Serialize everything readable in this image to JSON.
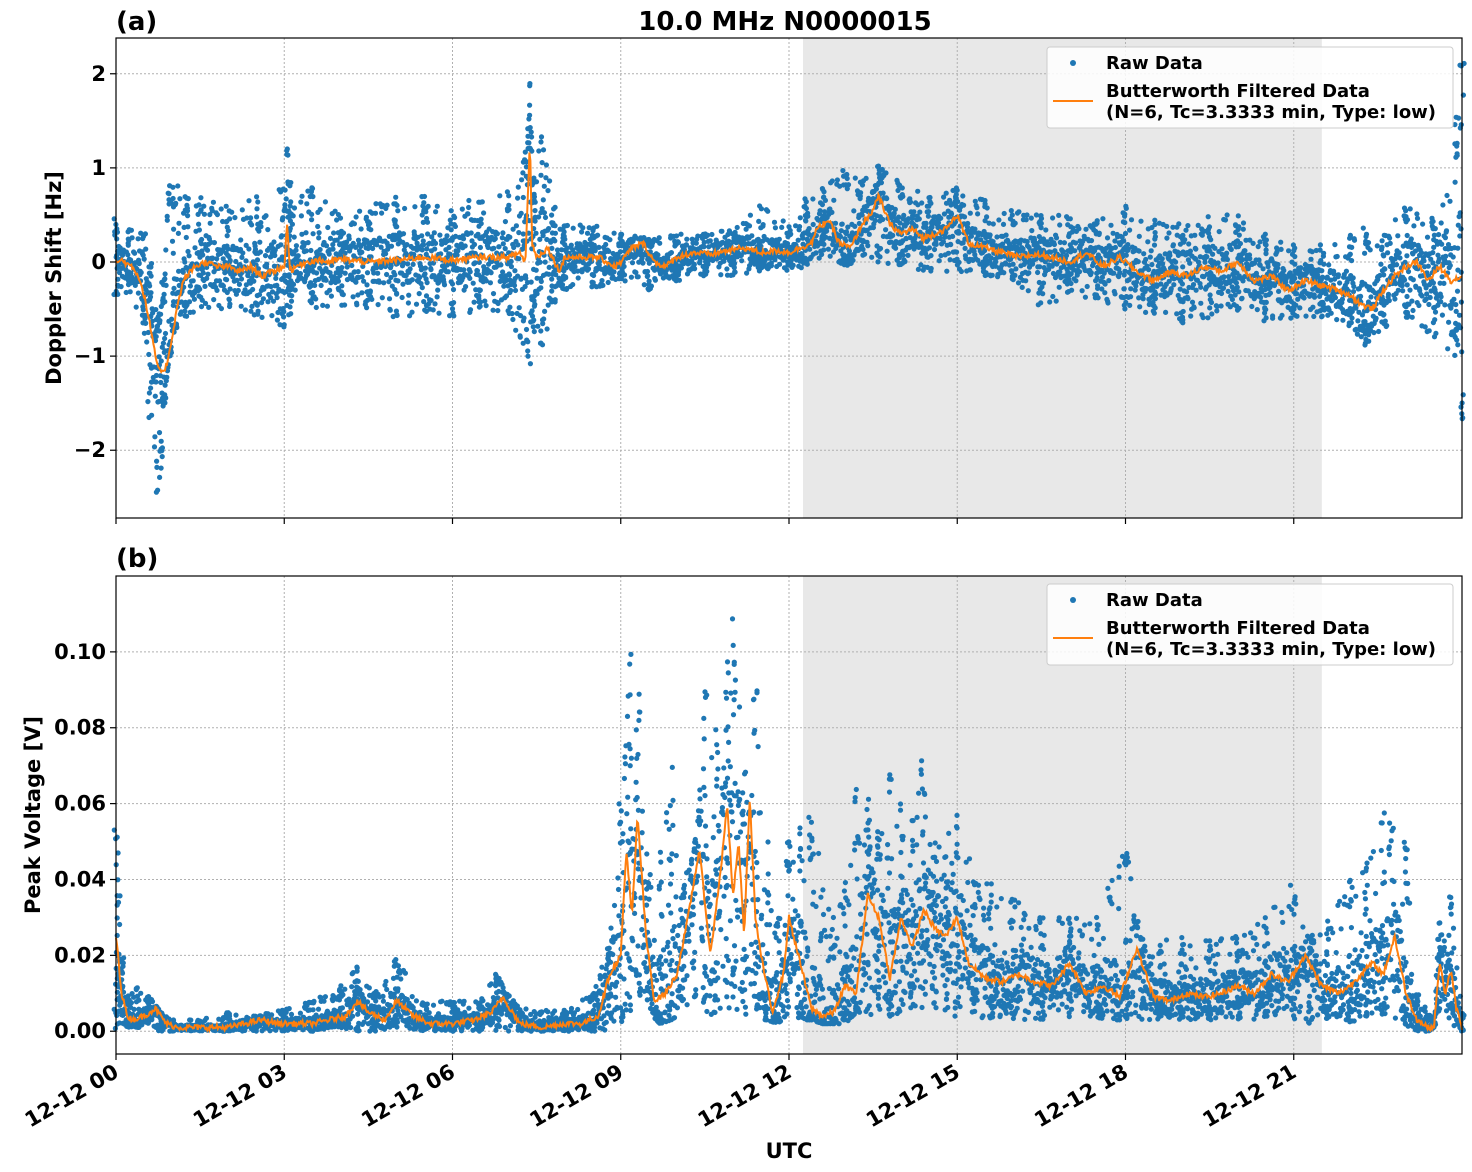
{
  "chart_data": [
    {
      "type": "scatter",
      "panel_label": "(a)",
      "title": "10.0 MHz N0000015",
      "xlabel": "",
      "ylabel": "Doppler Shift [Hz]",
      "xlim_hours": [
        0,
        24
      ],
      "ylim": [
        -2.72,
        2.38
      ],
      "x_ticks": [
        0,
        3,
        6,
        9,
        12,
        15,
        18,
        21
      ],
      "y_ticks": [
        -2,
        -1,
        0,
        1,
        2
      ],
      "y_tick_labels": [
        "−2",
        "−1",
        "0",
        "1",
        "2"
      ],
      "grid": true,
      "legend_position": "top-right",
      "shaded_region_hours": [
        12.25,
        21.5
      ],
      "series": [
        {
          "name": "Raw Data",
          "kind": "scatter",
          "color": "#1f77b4",
          "x_hours": [
            0.0,
            0.25,
            0.5,
            0.6,
            0.75,
            0.8,
            0.85,
            0.95,
            1.05,
            1.25,
            1.5,
            2.0,
            2.5,
            3.0,
            3.08,
            3.1,
            3.12,
            3.5,
            4.0,
            4.5,
            5.0,
            5.5,
            6.0,
            6.5,
            7.0,
            7.3,
            7.38,
            7.42,
            7.45,
            7.6,
            7.8,
            8.0,
            8.5,
            9.0,
            9.5,
            10.0,
            10.5,
            11.0,
            11.5,
            12.0,
            12.3,
            12.6,
            13.0,
            13.3,
            13.6,
            14.0,
            14.5,
            15.0,
            15.5,
            16.0,
            16.5,
            17.0,
            17.5,
            18.0,
            18.5,
            19.0,
            19.5,
            20.0,
            20.5,
            21.0,
            21.5,
            22.0,
            22.3,
            22.6,
            23.0,
            23.5,
            23.9,
            24.0
          ],
          "y_low": [
            -0.35,
            -0.35,
            -0.7,
            -1.7,
            -2.5,
            -2.2,
            -1.5,
            -1.0,
            -0.7,
            -0.6,
            -0.5,
            -0.5,
            -0.6,
            -0.7,
            -0.3,
            -0.6,
            -0.3,
            -0.5,
            -0.5,
            -0.5,
            -0.6,
            -0.55,
            -0.6,
            -0.5,
            -0.6,
            -0.9,
            -1.2,
            -0.8,
            -0.7,
            -0.9,
            -0.5,
            -0.3,
            -0.3,
            -0.2,
            -0.3,
            -0.2,
            -0.15,
            -0.15,
            -0.1,
            -0.1,
            -0.05,
            0.05,
            -0.05,
            0.05,
            -0.05,
            -0.05,
            -0.1,
            -0.1,
            -0.15,
            -0.2,
            -0.5,
            -0.35,
            -0.4,
            -0.5,
            -0.55,
            -0.65,
            -0.6,
            -0.55,
            -0.65,
            -0.6,
            -0.6,
            -0.7,
            -0.9,
            -0.7,
            -0.6,
            -0.8,
            -1.0,
            -1.7
          ],
          "y_high": [
            0.5,
            0.35,
            0.3,
            0.1,
            -0.5,
            -0.3,
            0.1,
            1.0,
            0.8,
            0.85,
            0.7,
            0.6,
            0.7,
            0.8,
            1.3,
            0.9,
            0.6,
            0.8,
            0.5,
            0.6,
            0.7,
            0.7,
            0.6,
            0.7,
            0.8,
            1.3,
            1.9,
            1.2,
            0.9,
            1.37,
            0.6,
            0.4,
            0.4,
            0.3,
            0.25,
            0.3,
            0.3,
            0.35,
            0.6,
            0.4,
            0.7,
            0.8,
            1.0,
            0.9,
            1.02,
            0.85,
            0.7,
            0.8,
            0.7,
            0.55,
            0.5,
            0.5,
            0.45,
            0.6,
            0.45,
            0.45,
            0.5,
            0.5,
            0.3,
            0.2,
            0.2,
            0.3,
            0.4,
            0.3,
            0.6,
            0.5,
            1.8,
            2.15
          ]
        },
        {
          "name": "Butterworth Filtered Data",
          "name_line2": "(N=6, Tc=3.3333 min, Type: low)",
          "kind": "line",
          "color": "#ff7f0e",
          "x_hours": [
            0.0,
            0.1,
            0.2,
            0.3,
            0.4,
            0.5,
            0.6,
            0.7,
            0.8,
            0.9,
            1.0,
            1.1,
            1.2,
            1.4,
            1.6,
            1.8,
            2.0,
            2.2,
            2.4,
            2.6,
            2.8,
            3.0,
            3.05,
            3.1,
            3.15,
            3.2,
            3.4,
            3.6,
            3.8,
            4.0,
            4.5,
            5.0,
            5.5,
            6.0,
            6.5,
            7.0,
            7.2,
            7.3,
            7.38,
            7.42,
            7.5,
            7.7,
            7.9,
            8.0,
            8.3,
            8.6,
            8.9,
            9.0,
            9.2,
            9.4,
            9.6,
            9.8,
            10.0,
            10.3,
            10.6,
            10.9,
            11.2,
            11.5,
            11.8,
            12.0,
            12.2,
            12.4,
            12.5,
            12.7,
            12.9,
            13.1,
            13.3,
            13.5,
            13.6,
            13.8,
            14.0,
            14.2,
            14.4,
            14.6,
            14.8,
            15.0,
            15.2,
            15.5,
            15.8,
            16.1,
            16.4,
            16.7,
            17.0,
            17.3,
            17.6,
            17.9,
            18.2,
            18.5,
            18.8,
            19.1,
            19.4,
            19.7,
            20.0,
            20.3,
            20.6,
            20.9,
            21.2,
            21.5,
            21.8,
            22.0,
            22.2,
            22.4,
            22.6,
            22.8,
            23.0,
            23.2,
            23.4,
            23.6,
            23.8,
            24.0
          ],
          "y": [
            0.0,
            0.02,
            -0.02,
            -0.05,
            -0.15,
            -0.35,
            -0.65,
            -1.0,
            -1.2,
            -1.1,
            -0.8,
            -0.45,
            -0.2,
            -0.05,
            0.0,
            -0.05,
            -0.05,
            -0.1,
            -0.05,
            -0.15,
            -0.1,
            -0.05,
            0.4,
            -0.05,
            -0.1,
            -0.05,
            0.0,
            0.02,
            0.0,
            0.03,
            0.0,
            0.02,
            0.05,
            0.02,
            0.05,
            0.05,
            0.1,
            0.0,
            1.3,
            0.2,
            0.05,
            0.15,
            -0.1,
            0.05,
            0.05,
            0.05,
            -0.05,
            0.0,
            0.15,
            0.2,
            0.0,
            -0.05,
            0.05,
            0.1,
            0.08,
            0.12,
            0.15,
            0.1,
            0.12,
            0.1,
            0.15,
            0.2,
            0.35,
            0.45,
            0.2,
            0.15,
            0.4,
            0.55,
            0.7,
            0.4,
            0.3,
            0.35,
            0.25,
            0.3,
            0.35,
            0.5,
            0.2,
            0.15,
            0.1,
            0.05,
            0.08,
            0.05,
            0.0,
            0.1,
            -0.05,
            0.05,
            -0.1,
            -0.2,
            -0.1,
            -0.15,
            -0.05,
            -0.1,
            0.0,
            -0.2,
            -0.15,
            -0.3,
            -0.2,
            -0.25,
            -0.3,
            -0.35,
            -0.45,
            -0.5,
            -0.3,
            -0.15,
            -0.05,
            0.0,
            -0.2,
            -0.05,
            -0.2,
            -0.15
          ]
        }
      ]
    },
    {
      "type": "scatter",
      "panel_label": "(b)",
      "title": "",
      "xlabel": "UTC",
      "ylabel": "Peak Voltage [V]",
      "xlim_hours": [
        0,
        24
      ],
      "ylim": [
        -0.006,
        0.12
      ],
      "x_ticks": [
        0,
        3,
        6,
        9,
        12,
        15,
        18,
        21
      ],
      "x_tick_labels": [
        "12-12 00",
        "12-12 03",
        "12-12 06",
        "12-12 09",
        "12-12 12",
        "12-12 15",
        "12-12 18",
        "12-12 21"
      ],
      "y_ticks": [
        0.0,
        0.02,
        0.04,
        0.06,
        0.08,
        0.1
      ],
      "y_tick_labels": [
        "0.00",
        "0.02",
        "0.04",
        "0.06",
        "0.08",
        "0.10"
      ],
      "grid": true,
      "legend_position": "top-right",
      "shaded_region_hours": [
        12.25,
        21.5
      ],
      "series": [
        {
          "name": "Raw Data",
          "kind": "scatter",
          "color": "#1f77b4",
          "x_hours": [
            0.0,
            0.05,
            0.1,
            0.2,
            0.4,
            0.6,
            0.8,
            1.0,
            1.5,
            2.0,
            2.5,
            3.0,
            3.5,
            4.0,
            4.3,
            4.6,
            5.0,
            5.5,
            6.0,
            6.5,
            6.8,
            7.2,
            7.6,
            8.0,
            8.5,
            8.8,
            9.0,
            9.15,
            9.3,
            9.5,
            9.7,
            9.9,
            10.1,
            10.3,
            10.5,
            10.7,
            10.9,
            11.0,
            11.2,
            11.4,
            11.6,
            11.8,
            12.0,
            12.2,
            12.4,
            12.6,
            12.8,
            13.0,
            13.2,
            13.4,
            13.6,
            13.8,
            14.0,
            14.2,
            14.4,
            14.6,
            14.8,
            15.0,
            15.3,
            15.6,
            16.0,
            16.5,
            17.0,
            17.5,
            18.0,
            18.3,
            18.6,
            19.0,
            19.5,
            20.0,
            20.5,
            21.0,
            21.3,
            21.6,
            22.0,
            22.3,
            22.6,
            23.0,
            23.2,
            23.4,
            23.5,
            23.6,
            23.8,
            24.0
          ],
          "y_low": [
            0.0,
            0.005,
            0.002,
            0.001,
            0.001,
            0.002,
            0.0,
            0.0,
            0.0,
            0.0,
            0.0,
            0.0,
            0.0,
            0.001,
            0.0,
            0.0,
            0.001,
            0.0,
            0.0,
            0.0,
            0.0,
            0.0,
            0.0,
            0.0,
            0.0,
            0.0,
            0.002,
            0.005,
            0.003,
            0.005,
            0.002,
            0.003,
            0.005,
            0.008,
            0.005,
            0.004,
            0.003,
            0.003,
            0.004,
            0.005,
            0.003,
            0.002,
            0.002,
            0.003,
            0.003,
            0.002,
            0.002,
            0.002,
            0.005,
            0.005,
            0.003,
            0.004,
            0.005,
            0.006,
            0.006,
            0.004,
            0.003,
            0.004,
            0.004,
            0.003,
            0.003,
            0.003,
            0.003,
            0.003,
            0.003,
            0.003,
            0.003,
            0.003,
            0.003,
            0.003,
            0.003,
            0.003,
            0.002,
            0.003,
            0.002,
            0.003,
            0.003,
            0.001,
            0.0,
            0.0,
            0.001,
            0.005,
            0.002,
            0.0
          ],
          "y_high": [
            0.054,
            0.036,
            0.02,
            0.01,
            0.012,
            0.009,
            0.005,
            0.003,
            0.003,
            0.005,
            0.004,
            0.006,
            0.008,
            0.012,
            0.017,
            0.01,
            0.02,
            0.008,
            0.008,
            0.008,
            0.016,
            0.006,
            0.006,
            0.006,
            0.01,
            0.024,
            0.06,
            0.106,
            0.09,
            0.04,
            0.05,
            0.07,
            0.04,
            0.05,
            0.09,
            0.08,
            0.1,
            0.114,
            0.08,
            0.09,
            0.05,
            0.03,
            0.05,
            0.056,
            0.06,
            0.04,
            0.03,
            0.04,
            0.068,
            0.066,
            0.055,
            0.068,
            0.06,
            0.06,
            0.072,
            0.05,
            0.05,
            0.06,
            0.04,
            0.04,
            0.035,
            0.03,
            0.03,
            0.03,
            0.055,
            0.025,
            0.025,
            0.025,
            0.025,
            0.025,
            0.03,
            0.04,
            0.025,
            0.03,
            0.04,
            0.045,
            0.058,
            0.05,
            0.01,
            0.005,
            0.004,
            0.03,
            0.036,
            0.005
          ]
        },
        {
          "name": "Butterworth Filtered Data",
          "name_line2": "(N=6, Tc=3.3333 min, Type: low)",
          "kind": "line",
          "color": "#ff7f0e",
          "x_hours": [
            0.0,
            0.05,
            0.1,
            0.2,
            0.3,
            0.5,
            0.7,
            0.9,
            1.1,
            1.4,
            1.7,
            2.0,
            2.3,
            2.6,
            2.9,
            3.2,
            3.5,
            3.8,
            4.1,
            4.3,
            4.5,
            4.8,
            5.0,
            5.3,
            5.6,
            6.0,
            6.4,
            6.7,
            6.9,
            7.2,
            7.6,
            8.0,
            8.3,
            8.6,
            8.8,
            9.0,
            9.1,
            9.2,
            9.3,
            9.45,
            9.6,
            9.8,
            10.0,
            10.2,
            10.4,
            10.6,
            10.8,
            10.9,
            11.0,
            11.1,
            11.2,
            11.3,
            11.4,
            11.5,
            11.7,
            11.9,
            12.0,
            12.2,
            12.4,
            12.6,
            12.8,
            13.0,
            13.2,
            13.4,
            13.6,
            13.8,
            14.0,
            14.2,
            14.4,
            14.6,
            14.8,
            15.0,
            15.2,
            15.5,
            15.8,
            16.1,
            16.4,
            16.7,
            17.0,
            17.3,
            17.6,
            17.9,
            18.2,
            18.5,
            18.8,
            19.1,
            19.4,
            19.7,
            20.0,
            20.3,
            20.6,
            20.9,
            21.2,
            21.5,
            21.8,
            22.0,
            22.2,
            22.4,
            22.6,
            22.8,
            23.0,
            23.2,
            23.4,
            23.5,
            23.6,
            23.7,
            23.8,
            23.9,
            24.0
          ],
          "y": [
            0.025,
            0.018,
            0.01,
            0.004,
            0.003,
            0.004,
            0.006,
            0.002,
            0.001,
            0.001,
            0.001,
            0.001,
            0.002,
            0.003,
            0.002,
            0.002,
            0.002,
            0.003,
            0.004,
            0.008,
            0.005,
            0.003,
            0.008,
            0.004,
            0.002,
            0.002,
            0.003,
            0.005,
            0.009,
            0.002,
            0.001,
            0.002,
            0.002,
            0.004,
            0.015,
            0.02,
            0.048,
            0.03,
            0.057,
            0.025,
            0.008,
            0.01,
            0.015,
            0.03,
            0.048,
            0.02,
            0.045,
            0.06,
            0.035,
            0.05,
            0.025,
            0.062,
            0.03,
            0.02,
            0.005,
            0.015,
            0.03,
            0.018,
            0.006,
            0.004,
            0.005,
            0.012,
            0.01,
            0.036,
            0.03,
            0.014,
            0.03,
            0.022,
            0.032,
            0.027,
            0.025,
            0.03,
            0.018,
            0.014,
            0.013,
            0.015,
            0.013,
            0.012,
            0.018,
            0.01,
            0.012,
            0.009,
            0.022,
            0.009,
            0.008,
            0.01,
            0.009,
            0.01,
            0.012,
            0.01,
            0.015,
            0.013,
            0.02,
            0.012,
            0.01,
            0.012,
            0.015,
            0.018,
            0.015,
            0.025,
            0.01,
            0.003,
            0.001,
            0.001,
            0.018,
            0.01,
            0.016,
            0.006,
            0.001
          ]
        }
      ]
    }
  ]
}
